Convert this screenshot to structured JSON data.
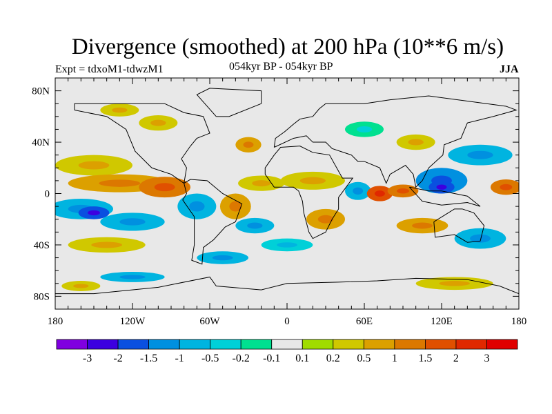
{
  "chart_data": {
    "type": "heatmap",
    "title": "Divergence (smoothed) at 200 hPa (10**6 m/s)",
    "subtitle": "054kyr BP - 054kyr BP",
    "left_label": "Expt = tdxoM1-tdwzM1",
    "right_label": "JJA",
    "x_range": [
      -180,
      180
    ],
    "y_range": [
      -90,
      90
    ],
    "x_ticks": [
      {
        "v": -180,
        "label": "180"
      },
      {
        "v": -120,
        "label": "120W"
      },
      {
        "v": -60,
        "label": "60W"
      },
      {
        "v": 0,
        "label": "0"
      },
      {
        "v": 60,
        "label": "60E"
      },
      {
        "v": 120,
        "label": "120E"
      },
      {
        "v": 180,
        "label": "180"
      }
    ],
    "y_ticks": [
      {
        "v": 80,
        "label": "80N"
      },
      {
        "v": 40,
        "label": "40N"
      },
      {
        "v": 0,
        "label": "0"
      },
      {
        "v": -40,
        "label": "40S"
      },
      {
        "v": -80,
        "label": "80S"
      }
    ],
    "colorbar": {
      "colors": [
        "#8000e0",
        "#3c00e0",
        "#0a50e0",
        "#0090e0",
        "#00b4e0",
        "#00d0d8",
        "#00e090",
        "#e8e8e8",
        "#a0dc00",
        "#d0c800",
        "#dca000",
        "#dc7800",
        "#e05000",
        "#e02800",
        "#e00000"
      ],
      "labels": [
        "-3",
        "-2",
        "-1.5",
        "-1",
        "-0.5",
        "-0.2",
        "-0.1",
        "0.1",
        "0.2",
        "0.5",
        "1",
        "1.5",
        "2",
        "3"
      ]
    },
    "regions": [
      {
        "lon": -150,
        "lat": 22,
        "rx": 30,
        "ry": 8,
        "level": 9
      },
      {
        "lon": -130,
        "lat": 8,
        "rx": 40,
        "ry": 7,
        "level": 10
      },
      {
        "lon": -95,
        "lat": 5,
        "rx": 20,
        "ry": 8,
        "level": 11
      },
      {
        "lon": -160,
        "lat": -12,
        "rx": 25,
        "ry": 8,
        "level": 4
      },
      {
        "lon": -150,
        "lat": -15,
        "rx": 12,
        "ry": 5,
        "level": 2
      },
      {
        "lon": -120,
        "lat": -22,
        "rx": 25,
        "ry": 7,
        "level": 4
      },
      {
        "lon": -140,
        "lat": -40,
        "rx": 30,
        "ry": 6,
        "level": 9
      },
      {
        "lon": -70,
        "lat": -10,
        "rx": 15,
        "ry": 10,
        "level": 4
      },
      {
        "lon": -40,
        "lat": -10,
        "rx": 12,
        "ry": 10,
        "level": 10
      },
      {
        "lon": -20,
        "lat": 8,
        "rx": 18,
        "ry": 6,
        "level": 9
      },
      {
        "lon": -25,
        "lat": -25,
        "rx": 15,
        "ry": 6,
        "level": 4
      },
      {
        "lon": -30,
        "lat": 38,
        "rx": 10,
        "ry": 6,
        "level": 10
      },
      {
        "lon": 20,
        "lat": 10,
        "rx": 25,
        "ry": 7,
        "level": 9
      },
      {
        "lon": 30,
        "lat": -20,
        "rx": 15,
        "ry": 8,
        "level": 10
      },
      {
        "lon": 55,
        "lat": 2,
        "rx": 10,
        "ry": 7,
        "level": 4
      },
      {
        "lon": 72,
        "lat": 0,
        "rx": 10,
        "ry": 6,
        "level": 12
      },
      {
        "lon": 90,
        "lat": 2,
        "rx": 12,
        "ry": 5,
        "level": 11
      },
      {
        "lon": 120,
        "lat": 10,
        "rx": 20,
        "ry": 10,
        "level": 3
      },
      {
        "lon": 120,
        "lat": 5,
        "rx": 10,
        "ry": 5,
        "level": 2
      },
      {
        "lon": 105,
        "lat": -25,
        "rx": 20,
        "ry": 6,
        "level": 10
      },
      {
        "lon": 150,
        "lat": 30,
        "rx": 25,
        "ry": 8,
        "level": 4
      },
      {
        "lon": 170,
        "lat": 5,
        "rx": 12,
        "ry": 6,
        "level": 11
      },
      {
        "lon": 150,
        "lat": -35,
        "rx": 20,
        "ry": 8,
        "level": 4
      },
      {
        "lon": 0,
        "lat": -40,
        "rx": 20,
        "ry": 5,
        "level": 5
      },
      {
        "lon": -100,
        "lat": 55,
        "rx": 15,
        "ry": 6,
        "level": 9
      },
      {
        "lon": 60,
        "lat": 50,
        "rx": 15,
        "ry": 6,
        "level": 6
      },
      {
        "lon": 100,
        "lat": 40,
        "rx": 15,
        "ry": 6,
        "level": 9
      },
      {
        "lon": -130,
        "lat": 65,
        "rx": 15,
        "ry": 5,
        "level": 9
      },
      {
        "lon": -50,
        "lat": -50,
        "rx": 20,
        "ry": 5,
        "level": 4
      },
      {
        "lon": 130,
        "lat": -70,
        "rx": 30,
        "ry": 5,
        "level": 9
      },
      {
        "lon": -120,
        "lat": -65,
        "rx": 25,
        "ry": 4,
        "level": 4
      },
      {
        "lon": -160,
        "lat": -72,
        "rx": 15,
        "ry": 4,
        "level": 9
      }
    ]
  }
}
